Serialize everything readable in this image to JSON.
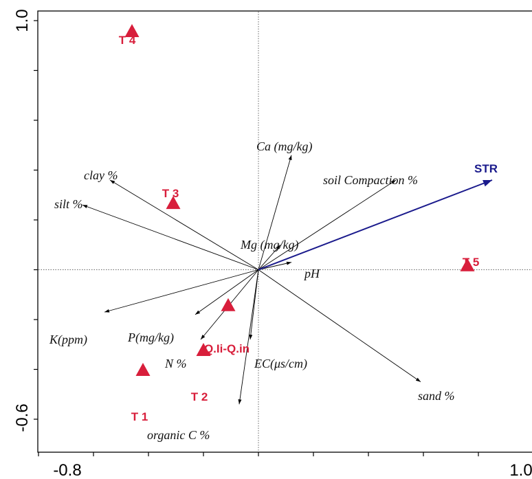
{
  "chart_data": {
    "type": "scatter",
    "subtype": "ordination-biplot",
    "xlim": [
      -0.8,
      1.0
    ],
    "ylim": [
      -0.6,
      1.0
    ],
    "x_tick_labels": [
      "-0.8",
      "1.0"
    ],
    "y_tick_labels": [
      "1.0",
      "-0.6"
    ],
    "origin_crosshair": true,
    "sites": [
      {
        "label": "T 4",
        "x": -0.46,
        "y": 0.96
      },
      {
        "label": "T 3",
        "x": -0.31,
        "y": 0.27
      },
      {
        "label": "T 5",
        "x": 0.76,
        "y": 0.02
      },
      {
        "label": "Q.Ii-Q.in",
        "x": -0.11,
        "y": -0.14
      },
      {
        "label": "T 2",
        "x": -0.2,
        "y": -0.32
      },
      {
        "label": "T 1",
        "x": -0.42,
        "y": -0.4
      }
    ],
    "response_arrow": {
      "label": "STR",
      "x": 0.85,
      "y": 0.36,
      "color": "#1a1a8c"
    },
    "environmental_vectors": [
      {
        "label": "Ca (mg/kg)",
        "x": 0.12,
        "y": 0.46
      },
      {
        "label": "soil Compaction %",
        "x": 0.5,
        "y": 0.36
      },
      {
        "label": "clay %",
        "x": -0.54,
        "y": 0.36
      },
      {
        "label": "silt %",
        "x": -0.64,
        "y": 0.26
      },
      {
        "label": "Mg (mg/kg)",
        "x": 0.08,
        "y": 0.1
      },
      {
        "label": "pH",
        "x": 0.12,
        "y": 0.03
      },
      {
        "label": "K(ppm)",
        "x": -0.56,
        "y": -0.17
      },
      {
        "label": "P(mg/kg)",
        "x": -0.23,
        "y": -0.18
      },
      {
        "label": "N %",
        "x": -0.21,
        "y": -0.28
      },
      {
        "label": "EC(μs/cm)",
        "x": -0.03,
        "y": -0.28
      },
      {
        "label": "sand %",
        "x": 0.59,
        "y": -0.45
      },
      {
        "label": "organic C %",
        "x": -0.07,
        "y": -0.54
      }
    ],
    "colors": {
      "site_marker": "#d81e3b",
      "response_arrow": "#1a1a8c",
      "env_arrow": "#000000"
    }
  }
}
